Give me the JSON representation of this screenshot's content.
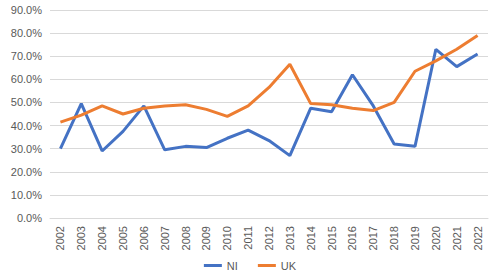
{
  "chart_data": {
    "type": "line",
    "categories": [
      "2002",
      "2003",
      "2004",
      "2005",
      "2006",
      "2007",
      "2008",
      "2009",
      "2010",
      "2011",
      "2012",
      "2013",
      "2014",
      "2015",
      "2016",
      "2017",
      "2018",
      "2019",
      "2020",
      "2021",
      "2022"
    ],
    "series": [
      {
        "name": "NI",
        "color": "#4472c4",
        "values": [
          30.0,
          49.5,
          29.0,
          37.5,
          48.5,
          29.5,
          31.0,
          30.5,
          34.5,
          38.0,
          33.5,
          27.0,
          47.5,
          46.0,
          62.0,
          48.5,
          32.0,
          31.0,
          73.0,
          65.5,
          71.0
        ]
      },
      {
        "name": "UK",
        "color": "#ed7d31",
        "values": [
          41.5,
          44.5,
          48.5,
          45.0,
          47.5,
          48.5,
          49.0,
          47.0,
          44.0,
          48.5,
          56.5,
          66.5,
          49.5,
          49.0,
          47.5,
          46.5,
          50.0,
          63.5,
          68.0,
          73.0,
          79.0
        ]
      }
    ],
    "ylim": [
      0,
      90
    ],
    "yticks": [
      {
        "value": 0,
        "label": "0.0%"
      },
      {
        "value": 10,
        "label": "10.0%"
      },
      {
        "value": 20,
        "label": "20.0%"
      },
      {
        "value": 30,
        "label": "30.0%"
      },
      {
        "value": 40,
        "label": "40.0%"
      },
      {
        "value": 50,
        "label": "50.0%"
      },
      {
        "value": 60,
        "label": "60.0%"
      },
      {
        "value": 70,
        "label": "70.0%"
      },
      {
        "value": 80,
        "label": "80.0%"
      },
      {
        "value": 90,
        "label": "90.0%"
      }
    ],
    "grid": true,
    "legend": "bottom"
  }
}
